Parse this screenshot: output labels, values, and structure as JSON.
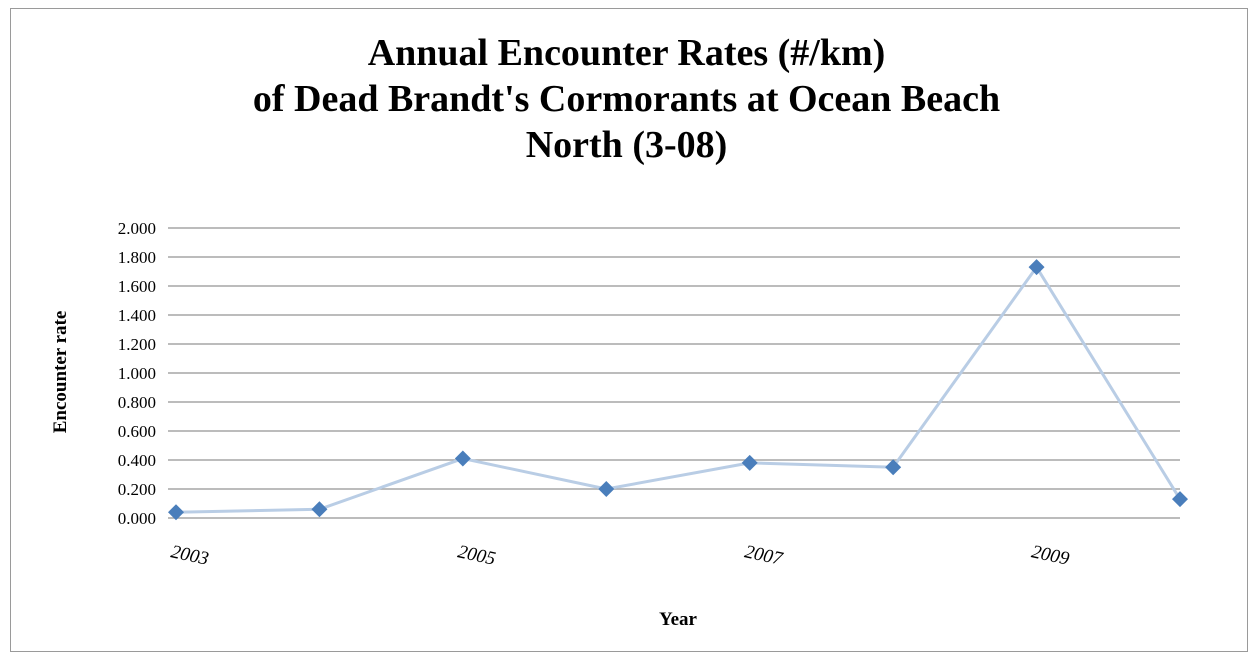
{
  "chart_data": {
    "type": "line",
    "title_lines": [
      "Annual Encounter Rates (#/km)",
      "of Dead Brandt's Cormorants at Ocean Beach",
      "North (3-08)"
    ],
    "xlabel": "Year",
    "ylabel": "Encounter rate",
    "x": [
      2003,
      2004,
      2005,
      2006,
      2007,
      2008,
      2009,
      2010
    ],
    "x_tick_labels": [
      "2003",
      "2005",
      "2007",
      "2009"
    ],
    "x_tick_values": [
      2003,
      2005,
      2007,
      2009
    ],
    "y_tick_labels": [
      "0.000",
      "0.200",
      "0.400",
      "0.600",
      "0.800",
      "1.000",
      "1.200",
      "1.400",
      "1.600",
      "1.800",
      "2.000"
    ],
    "ylim": [
      0,
      2.0
    ],
    "grid": true,
    "legend": "none",
    "series": [
      {
        "values": [
          0.04,
          0.06,
          0.41,
          0.2,
          0.38,
          0.35,
          1.73,
          0.13
        ]
      }
    ],
    "colors": {
      "line": "#b9cde5",
      "marker": "#4a7ebb",
      "grid": "#a6a6a6"
    }
  }
}
